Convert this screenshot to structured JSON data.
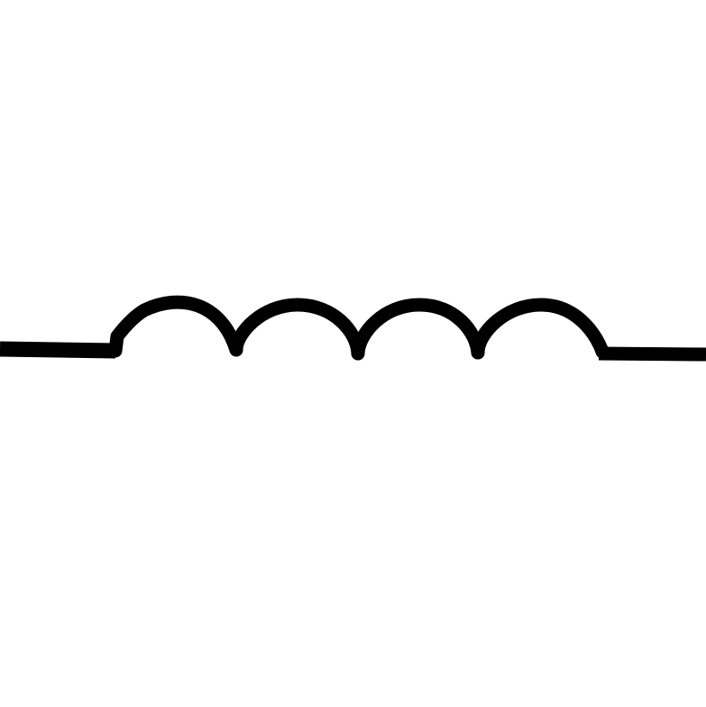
{
  "diagram": {
    "symbol": "inductor",
    "turns": 4,
    "stroke_color": "#000000",
    "background_color": "#ffffff"
  }
}
